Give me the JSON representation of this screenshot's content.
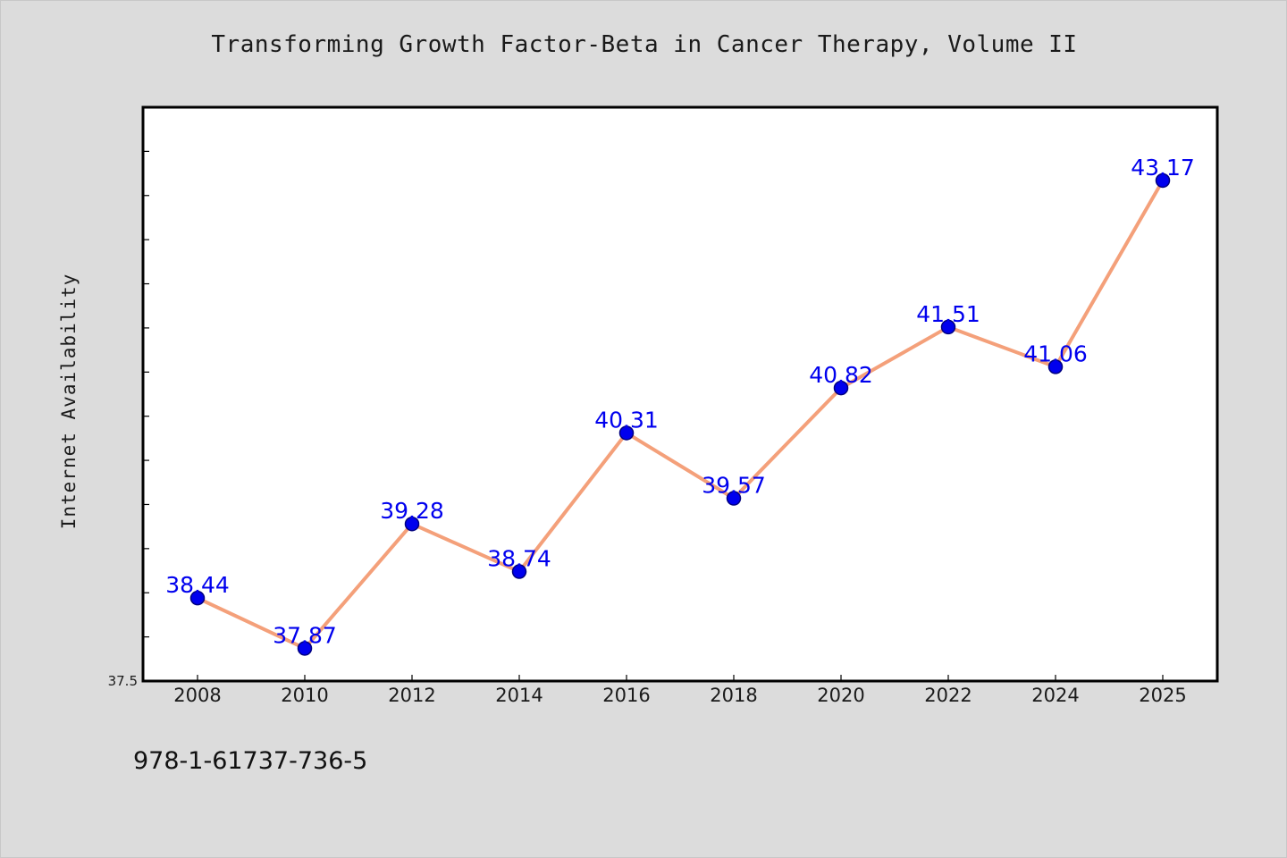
{
  "chart_data": {
    "type": "line",
    "title": "Transforming Growth Factor-Beta in Cancer Therapy, Volume II",
    "xlabel": "",
    "ylabel": "Internet Availability",
    "categories": [
      "2008",
      "2010",
      "2012",
      "2014",
      "2016",
      "2018",
      "2020",
      "2022",
      "2024",
      "2025"
    ],
    "values": [
      38.44,
      37.87,
      39.28,
      38.74,
      40.31,
      39.57,
      40.82,
      41.51,
      41.06,
      43.17
    ],
    "data_labels": [
      "38.44",
      "37.87",
      "39.28",
      "38.74",
      "40.31",
      "39.57",
      "40.82",
      "41.51",
      "41.06",
      "43.17"
    ],
    "y_tick_labels": [
      "37.5"
    ],
    "ylim": [
      37.5,
      44.0
    ],
    "y_minor_tick_step": 0.5,
    "grid": false,
    "legend": "none",
    "colors": {
      "line": "#f4a07a",
      "marker": "#0000ee",
      "marker_edge": "#000080",
      "data_label": "#0000ee",
      "plot_background": "#ffffff",
      "figure_background": "#dcdcdc"
    }
  },
  "footer": {
    "isbn": "978-1-61737-736-5"
  }
}
